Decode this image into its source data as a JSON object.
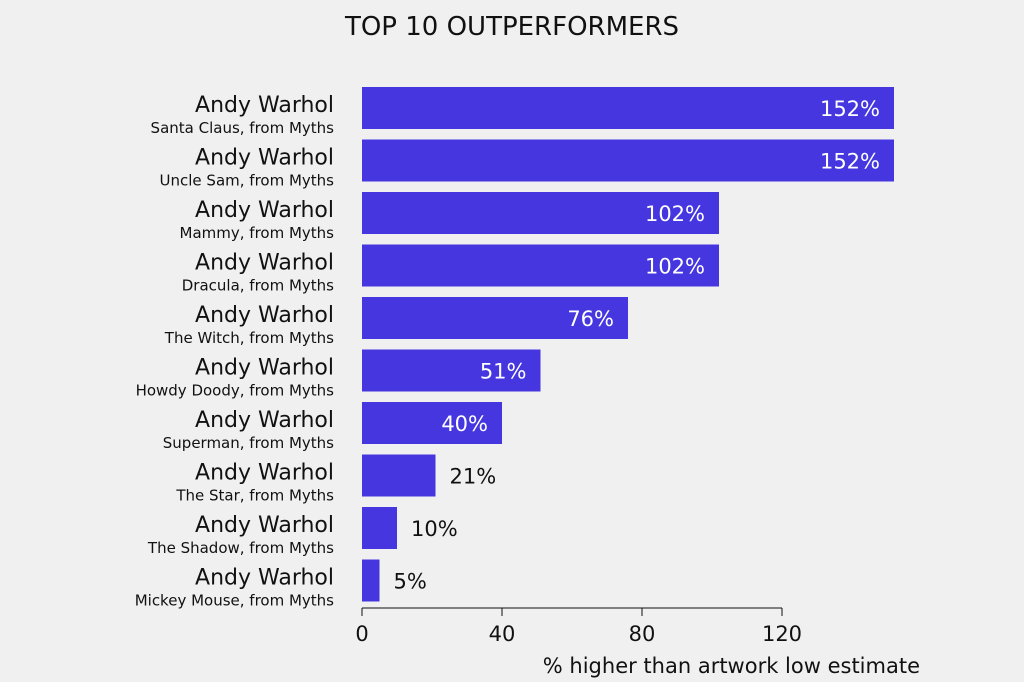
{
  "chart_data": {
    "type": "bar",
    "orientation": "horizontal",
    "title": "TOP 10 OUTPERFORMERS",
    "xlabel": "% higher than artwork low estimate",
    "ylabel": "",
    "xlim": [
      0,
      152
    ],
    "xticks": [
      "0",
      "40",
      "80",
      "120"
    ],
    "grid": false,
    "legend": "none",
    "bar_color": "#4536e0",
    "categories": [
      {
        "artist": "Andy Warhol",
        "work": "Santa Claus, from Myths"
      },
      {
        "artist": "Andy Warhol",
        "work": "Uncle Sam, from Myths"
      },
      {
        "artist": "Andy Warhol",
        "work": "Mammy, from Myths"
      },
      {
        "artist": "Andy Warhol",
        "work": "Dracula, from Myths"
      },
      {
        "artist": "Andy Warhol",
        "work": "The Witch, from Myths"
      },
      {
        "artist": "Andy Warhol",
        "work": "Howdy Doody, from Myths"
      },
      {
        "artist": "Andy Warhol",
        "work": "Superman, from Myths"
      },
      {
        "artist": "Andy Warhol",
        "work": "The Star, from Myths"
      },
      {
        "artist": "Andy Warhol",
        "work": "The Shadow, from Myths"
      },
      {
        "artist": "Andy Warhol",
        "work": "Mickey Mouse, from Myths"
      }
    ],
    "values": [
      152,
      152,
      102,
      102,
      76,
      51,
      40,
      21,
      10,
      5
    ],
    "value_labels": [
      "152%",
      "152%",
      "102%",
      "102%",
      "76%",
      "51%",
      "40%",
      "21%",
      "10%",
      "5%"
    ]
  }
}
